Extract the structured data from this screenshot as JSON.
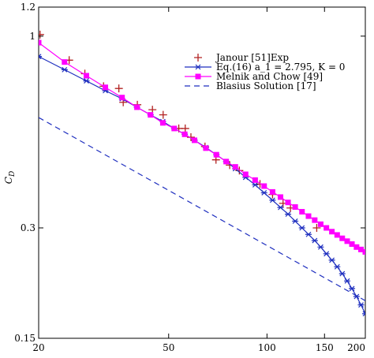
{
  "chart_data": {
    "type": "line",
    "title": "",
    "xlabel": "",
    "ylabel": "C_D",
    "x_scale": "log",
    "y_scale": "log",
    "xlim": [
      20,
      200
    ],
    "ylim": [
      0.15,
      1.2
    ],
    "x_ticks": [
      20,
      50,
      100,
      150,
      200
    ],
    "x_tick_labels": [
      "20",
      "50",
      "100",
      "150",
      "200"
    ],
    "y_ticks": [
      0.15,
      0.3,
      1.0,
      1.2
    ],
    "y_tick_labels": [
      "0.15",
      "0.3",
      "1",
      "1.2"
    ],
    "grid": false,
    "legend_position": "top-right",
    "series": [
      {
        "name": "Janour [51]Exp",
        "color": "#b22222",
        "marker": "plus",
        "line": false,
        "x": [
          20.2,
          24.8,
          27.7,
          31.6,
          35.2,
          36.3,
          40.1,
          44.6,
          48.1,
          53.7,
          56.2,
          58.5,
          64.6,
          69.8,
          76.9,
          82.3,
          95.2,
          104,
          112,
          118,
          142
        ],
        "y": [
          1.01,
          0.86,
          0.79,
          0.73,
          0.72,
          0.66,
          0.65,
          0.63,
          0.61,
          0.56,
          0.56,
          0.53,
          0.5,
          0.46,
          0.445,
          0.43,
          0.395,
          0.37,
          0.35,
          0.34,
          0.3
        ]
      },
      {
        "name": "Eq.(16) a_1 = 2.795, K = 0",
        "color": "#1f2fbf",
        "marker": "asterisk",
        "line": true,
        "x": [
          20,
          24,
          28,
          32,
          36,
          40,
          44,
          48,
          52,
          56,
          60,
          65,
          70,
          75,
          80,
          86,
          92,
          98,
          104,
          110,
          116,
          122,
          128,
          134,
          140,
          146,
          152,
          158,
          164,
          170,
          176,
          182,
          188,
          194,
          200
        ],
        "y": [
          0.88,
          0.81,
          0.755,
          0.71,
          0.675,
          0.64,
          0.61,
          0.585,
          0.56,
          0.54,
          0.52,
          0.497,
          0.475,
          0.455,
          0.435,
          0.412,
          0.393,
          0.374,
          0.357,
          0.341,
          0.327,
          0.313,
          0.3,
          0.288,
          0.277,
          0.266,
          0.255,
          0.245,
          0.235,
          0.225,
          0.215,
          0.205,
          0.195,
          0.185,
          0.175
        ]
      },
      {
        "name": "Melnik and Chow [49]",
        "color": "#ff00ff",
        "marker": "square",
        "line": true,
        "x": [
          20,
          24,
          28,
          32,
          36,
          40,
          44,
          48,
          52,
          56,
          60,
          65,
          70,
          75,
          80,
          86,
          92,
          98,
          104,
          110,
          116,
          122,
          128,
          134,
          140,
          146,
          152,
          158,
          164,
          170,
          176,
          182,
          188,
          194,
          200
        ],
        "y": [
          0.96,
          0.85,
          0.78,
          0.725,
          0.68,
          0.64,
          0.61,
          0.58,
          0.56,
          0.54,
          0.52,
          0.495,
          0.475,
          0.455,
          0.44,
          0.42,
          0.405,
          0.39,
          0.376,
          0.364,
          0.352,
          0.342,
          0.332,
          0.323,
          0.315,
          0.307,
          0.3,
          0.293,
          0.287,
          0.281,
          0.276,
          0.271,
          0.266,
          0.262,
          0.258
        ]
      },
      {
        "name": "Blasius Solution [17]",
        "color": "#1f2fbf",
        "marker": "none",
        "line": true,
        "dashed": true,
        "x": [
          20,
          200
        ],
        "y": [
          0.6,
          0.19
        ]
      }
    ]
  }
}
